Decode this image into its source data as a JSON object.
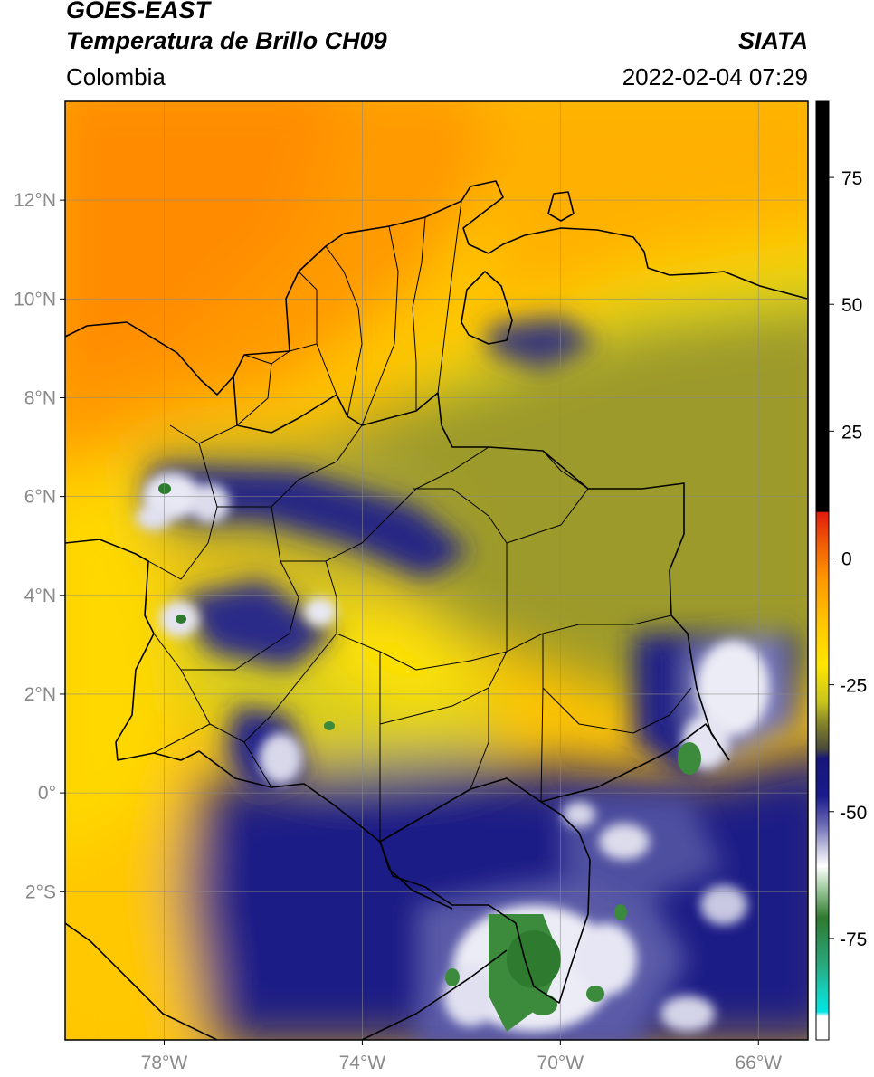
{
  "header": {
    "satellite": "GOES-EAST",
    "product": "Temperatura de Brillo CH09",
    "organization": "SIATA",
    "region": "Colombia",
    "datetime": "2022-02-04 07:29"
  },
  "map": {
    "lon_range": [
      -80,
      -65
    ],
    "lat_range": [
      -5,
      14
    ],
    "lon_ticks": [
      "78°W",
      "74°W",
      "70°W",
      "66°W"
    ],
    "lat_ticks": [
      "12°N",
      "10°N",
      "8°N",
      "6°N",
      "4°N",
      "2°N",
      "0°",
      "2°S"
    ],
    "grid": true
  },
  "colorbar": {
    "ticks": [
      "75",
      "50",
      "25",
      "0",
      "-25",
      "-50",
      "-75"
    ],
    "range": [
      -95,
      90
    ],
    "colors": {
      "top": "#000000",
      "red": "#e21b0c",
      "orange": "#ff9900",
      "yellow": "#ffe600",
      "olive": "#8a8a28",
      "navy": "#16167a",
      "white": "#ffffff",
      "green": "#2e7a2e",
      "teal": "#14b49c",
      "cyan": "#00e5e5"
    }
  }
}
